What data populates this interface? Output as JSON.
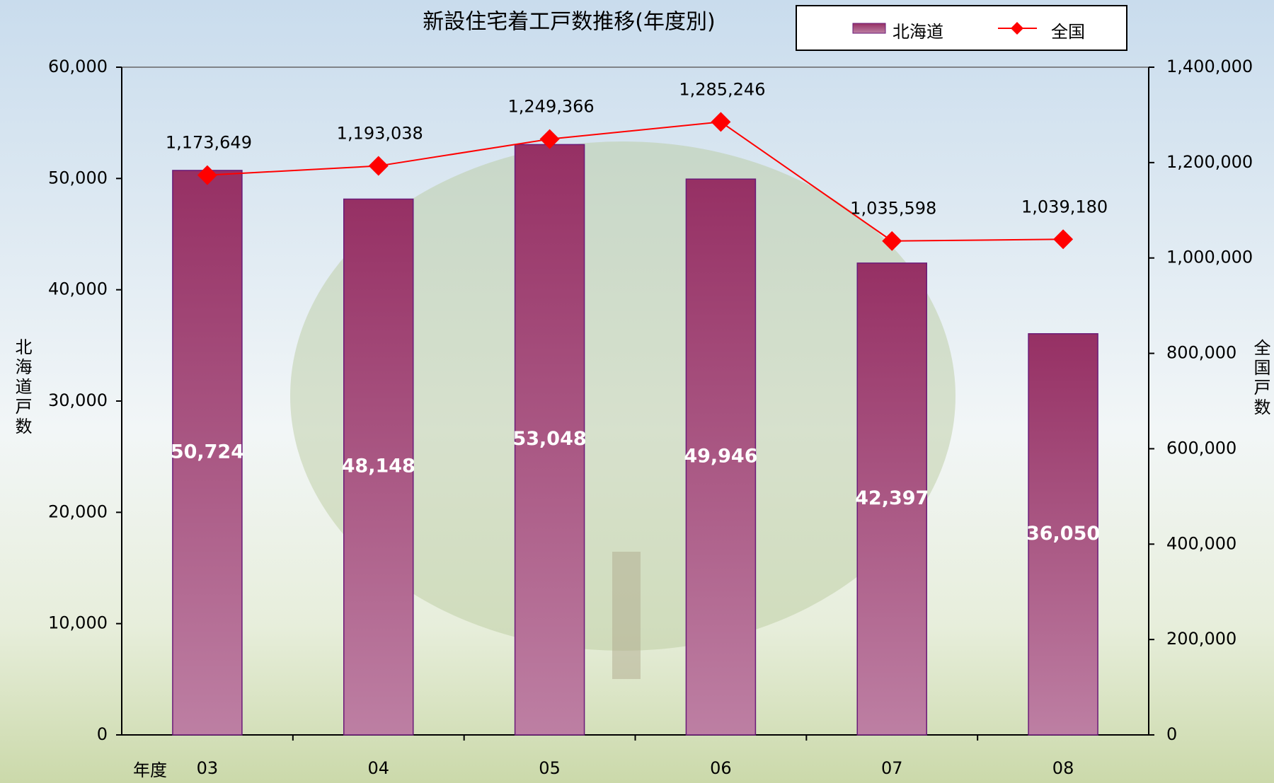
{
  "chart_data": {
    "type": "combo",
    "title": "新設住宅着工戸数推移(年度別)",
    "x_label": "年度",
    "y_label": "北海道戸数",
    "y2_label": "全国戸数",
    "categories": [
      "03",
      "04",
      "05",
      "06",
      "07",
      "08"
    ],
    "series": [
      {
        "name": "北海道",
        "type": "bar",
        "color": "#9b3468",
        "values": [
          50724,
          48148,
          53048,
          49946,
          42397,
          36050
        ],
        "value_labels": [
          "50,724",
          "48,148",
          "53,048",
          "49,946",
          "42,397",
          "36,050"
        ]
      },
      {
        "name": "全国",
        "type": "line",
        "axis": "y2",
        "color": "#ff0000",
        "values": [
          1173649,
          1193038,
          1249366,
          1285246,
          1035598,
          1039180
        ],
        "value_labels": [
          "1,173,649",
          "1,193,038",
          "1,249,366",
          "1,285,246",
          "1,035,598",
          "1,039,180"
        ]
      }
    ],
    "ylim": [
      0,
      60000
    ],
    "yticks": [
      0,
      {
        "value": 10000,
        "label": "10,000"
      },
      {
        "value": 20000,
        "label": "20,000"
      },
      {
        "value": 30000,
        "label": "30,000"
      },
      {
        "value": 40000,
        "label": "40,000"
      },
      {
        "value": 50000,
        "label": "50,000"
      },
      {
        "value": 60000,
        "label": "60,000"
      }
    ],
    "y2lim": [
      0,
      1400000
    ],
    "y2ticks": [
      0,
      {
        "value": 200000,
        "label": "200,000"
      },
      {
        "value": 400000,
        "label": "400,000"
      },
      {
        "value": 600000,
        "label": "600,000"
      },
      {
        "value": 800000,
        "label": "800,000"
      },
      {
        "value": 1000000,
        "label": "1,000,000"
      },
      {
        "value": 1200000,
        "label": "1,200,000"
      },
      {
        "value": 1400000,
        "label": "1,400,000"
      }
    ],
    "grid": false,
    "legend": "top-right"
  }
}
